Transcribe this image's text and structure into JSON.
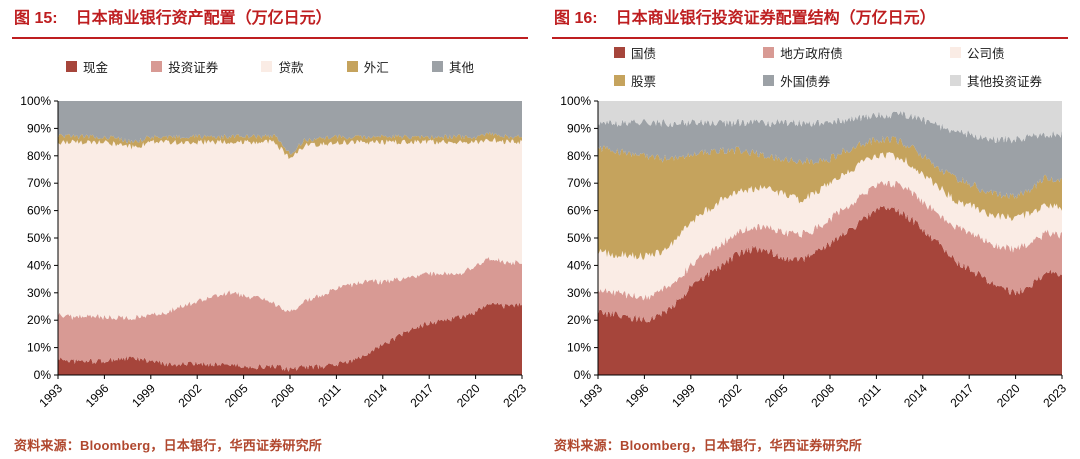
{
  "colors": {
    "title_red": "#BE1E20",
    "source_text": "#B0472E",
    "axis_text": "#000000"
  },
  "chart_data": [
    {
      "type": "area",
      "stacked": true,
      "percent": true,
      "fig_label": "图 15:",
      "title": "日本商业银行资产配置（万亿日元）",
      "source": "资料来源：Bloomberg，日本银行，华西证券研究所",
      "ylim": [
        0,
        100
      ],
      "ytick_step": 10,
      "grid": false,
      "legend_position": "top",
      "legend_layout": "row",
      "noise_amp": 1.0,
      "x": [
        1993,
        1994,
        1995,
        1996,
        1997,
        1998,
        1999,
        2000,
        2001,
        2002,
        2003,
        2004,
        2005,
        2006,
        2007,
        2008,
        2009,
        2010,
        2011,
        2012,
        2013,
        2014,
        2015,
        2016,
        2017,
        2018,
        2019,
        2020,
        2021,
        2022,
        2023
      ],
      "xticks": [
        1993,
        1996,
        1999,
        2002,
        2005,
        2008,
        2011,
        2014,
        2017,
        2020,
        2023
      ],
      "series": [
        {
          "name": "现金",
          "color": "#A6453B",
          "values": [
            6,
            5,
            5,
            5,
            6,
            6,
            5,
            4,
            4,
            4,
            4,
            4,
            3,
            3,
            3,
            2,
            3,
            3,
            4,
            5,
            8,
            11,
            14,
            17,
            19,
            20,
            21,
            23,
            26,
            25,
            26
          ]
        },
        {
          "name": "投资证券",
          "color": "#D89A94",
          "values": [
            16,
            16,
            17,
            16,
            15,
            15,
            17,
            19,
            21,
            23,
            25,
            26,
            26,
            25,
            23,
            21,
            24,
            26,
            28,
            28,
            26,
            23,
            21,
            19,
            18,
            17,
            16,
            17,
            17,
            16,
            15
          ]
        },
        {
          "name": "贷款",
          "color": "#FAECE5",
          "values": [
            63,
            64,
            63,
            64,
            63,
            62,
            63,
            62,
            60,
            58,
            56,
            55,
            56,
            57,
            59,
            56,
            57,
            55,
            53,
            52,
            51,
            51,
            50,
            49,
            48,
            48,
            48,
            45,
            43,
            44,
            44
          ]
        },
        {
          "name": "外汇",
          "color": "#C5A35D",
          "values": [
            2,
            2,
            2,
            2,
            2,
            2,
            2,
            2,
            2,
            2,
            2,
            2,
            2,
            2,
            2,
            2,
            2,
            2,
            2,
            2,
            2,
            2,
            2,
            2,
            2,
            2,
            2,
            2,
            2,
            2,
            2
          ]
        },
        {
          "name": "其他",
          "color": "#9CA1A6",
          "values": [
            13,
            13,
            13,
            13,
            14,
            15,
            13,
            13,
            13,
            13,
            13,
            13,
            13,
            13,
            13,
            19,
            14,
            14,
            13,
            13,
            13,
            13,
            13,
            13,
            13,
            13,
            13,
            13,
            12,
            13,
            13
          ]
        }
      ],
      "legend_rows": [
        [
          "现金",
          "投资证券",
          "贷款",
          "外汇",
          "其他"
        ]
      ]
    },
    {
      "type": "area",
      "stacked": true,
      "percent": true,
      "fig_label": "图 16:",
      "title": "日本商业银行投资证券配置结构（万亿日元）",
      "source": "资料来源：Bloomberg，日本银行，华西证券研究所",
      "ylim": [
        0,
        100
      ],
      "ytick_step": 10,
      "grid": false,
      "legend_position": "top",
      "legend_layout": "grid3",
      "noise_amp": 1.5,
      "x": [
        1993,
        1994,
        1995,
        1996,
        1997,
        1998,
        1999,
        2000,
        2001,
        2002,
        2003,
        2004,
        2005,
        2006,
        2007,
        2008,
        2009,
        2010,
        2011,
        2012,
        2013,
        2014,
        2015,
        2016,
        2017,
        2018,
        2019,
        2020,
        2021,
        2022,
        2023
      ],
      "xticks": [
        1993,
        1996,
        1999,
        2002,
        2005,
        2008,
        2011,
        2014,
        2017,
        2020,
        2023
      ],
      "series": [
        {
          "name": "国债",
          "color": "#A6453B",
          "values": [
            23,
            22,
            21,
            20,
            22,
            26,
            32,
            36,
            40,
            44,
            46,
            45,
            43,
            42,
            44,
            48,
            52,
            56,
            60,
            61,
            58,
            53,
            48,
            42,
            39,
            35,
            32,
            30,
            33,
            38,
            37
          ]
        },
        {
          "name": "地方政府债",
          "color": "#D89A94",
          "values": [
            8,
            8,
            8,
            8,
            8,
            8,
            8,
            8,
            8,
            8,
            8,
            9,
            9,
            9,
            9,
            9,
            9,
            9,
            9,
            9,
            10,
            10,
            11,
            12,
            13,
            14,
            15,
            16,
            15,
            14,
            14
          ]
        },
        {
          "name": "公司债",
          "color": "#FAECE5",
          "values": [
            14,
            14,
            15,
            15,
            15,
            15,
            16,
            16,
            16,
            15,
            14,
            14,
            14,
            13,
            13,
            13,
            13,
            12,
            11,
            10,
            10,
            10,
            10,
            10,
            10,
            10,
            11,
            11,
            11,
            10,
            10
          ]
        },
        {
          "name": "股票",
          "color": "#C5A35D",
          "values": [
            38,
            38,
            37,
            37,
            34,
            30,
            24,
            21,
            18,
            15,
            13,
            12,
            13,
            14,
            12,
            9,
            8,
            7,
            6,
            6,
            6,
            7,
            7,
            8,
            8,
            8,
            8,
            8,
            9,
            10,
            10
          ]
        },
        {
          "name": "外国债券",
          "color": "#9CA1A6",
          "values": [
            9,
            10,
            11,
            12,
            13,
            13,
            12,
            11,
            10,
            10,
            11,
            12,
            13,
            14,
            14,
            13,
            11,
            10,
            9,
            9,
            11,
            13,
            15,
            17,
            18,
            19,
            20,
            21,
            19,
            16,
            17
          ]
        },
        {
          "name": "其他投资证券",
          "color": "#D9D9D9",
          "values": [
            8,
            8,
            8,
            8,
            8,
            8,
            8,
            8,
            8,
            8,
            8,
            8,
            8,
            8,
            8,
            8,
            7,
            6,
            5,
            5,
            5,
            7,
            9,
            11,
            12,
            14,
            14,
            14,
            13,
            12,
            12
          ]
        }
      ],
      "legend_rows": [
        [
          "国债",
          "地方政府债",
          "公司债"
        ],
        [
          "股票",
          "外国债券",
          "其他投资证券"
        ]
      ]
    }
  ]
}
